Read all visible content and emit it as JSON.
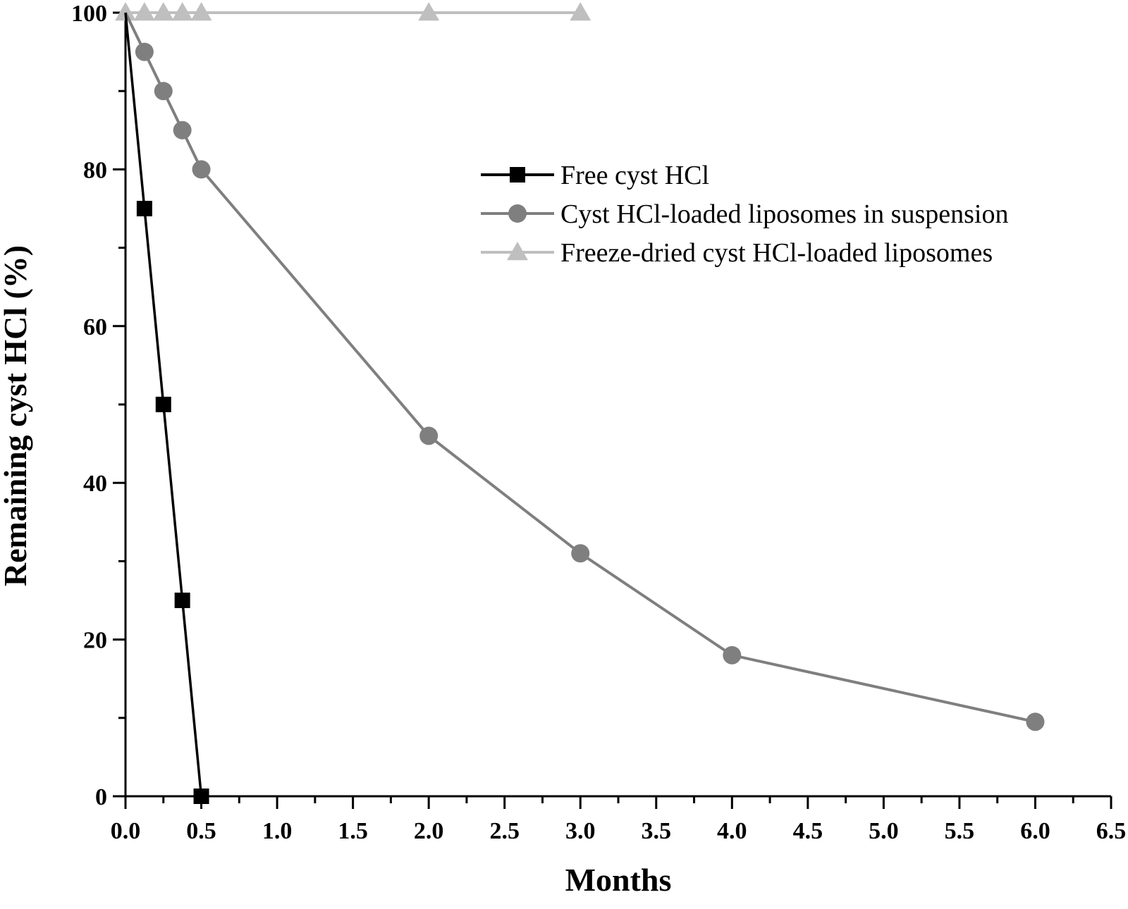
{
  "chart_data": {
    "type": "line",
    "title": "",
    "xlabel": "Months",
    "ylabel": "Remaining cyst HCl (%)",
    "xlim": [
      0,
      6.5
    ],
    "ylim": [
      0,
      100
    ],
    "x_ticks": [
      "0.0",
      "0.5",
      "1.0",
      "1.5",
      "2.0",
      "2.5",
      "3.0",
      "3.5",
      "4.0",
      "4.5",
      "5.0",
      "5.5",
      "6.0",
      "6.5"
    ],
    "y_ticks": [
      "0",
      "20",
      "40",
      "60",
      "80",
      "100"
    ],
    "grid": false,
    "legend_position": "top-right",
    "series": [
      {
        "name": "Free cyst HCl",
        "marker": "square",
        "color": "#000000",
        "points": [
          [
            0,
            100
          ],
          [
            0.125,
            75
          ],
          [
            0.25,
            50
          ],
          [
            0.375,
            25
          ],
          [
            0.5,
            0
          ]
        ]
      },
      {
        "name": "Cyst HCl-loaded liposomes in suspension",
        "marker": "circle",
        "color": "#7f7f7f",
        "points": [
          [
            0,
            100
          ],
          [
            0.125,
            95
          ],
          [
            0.25,
            90
          ],
          [
            0.375,
            85
          ],
          [
            0.5,
            80
          ],
          [
            2,
            46
          ],
          [
            3,
            31
          ],
          [
            4,
            18
          ],
          [
            6,
            9.5
          ]
        ]
      },
      {
        "name": "Freeze-dried cyst HCl-loaded liposomes",
        "marker": "triangle",
        "color": "#bfbfbf",
        "points": [
          [
            0,
            100
          ],
          [
            0.125,
            100
          ],
          [
            0.25,
            100
          ],
          [
            0.375,
            100
          ],
          [
            0.5,
            100
          ],
          [
            2,
            100
          ],
          [
            3,
            100
          ]
        ]
      }
    ]
  }
}
